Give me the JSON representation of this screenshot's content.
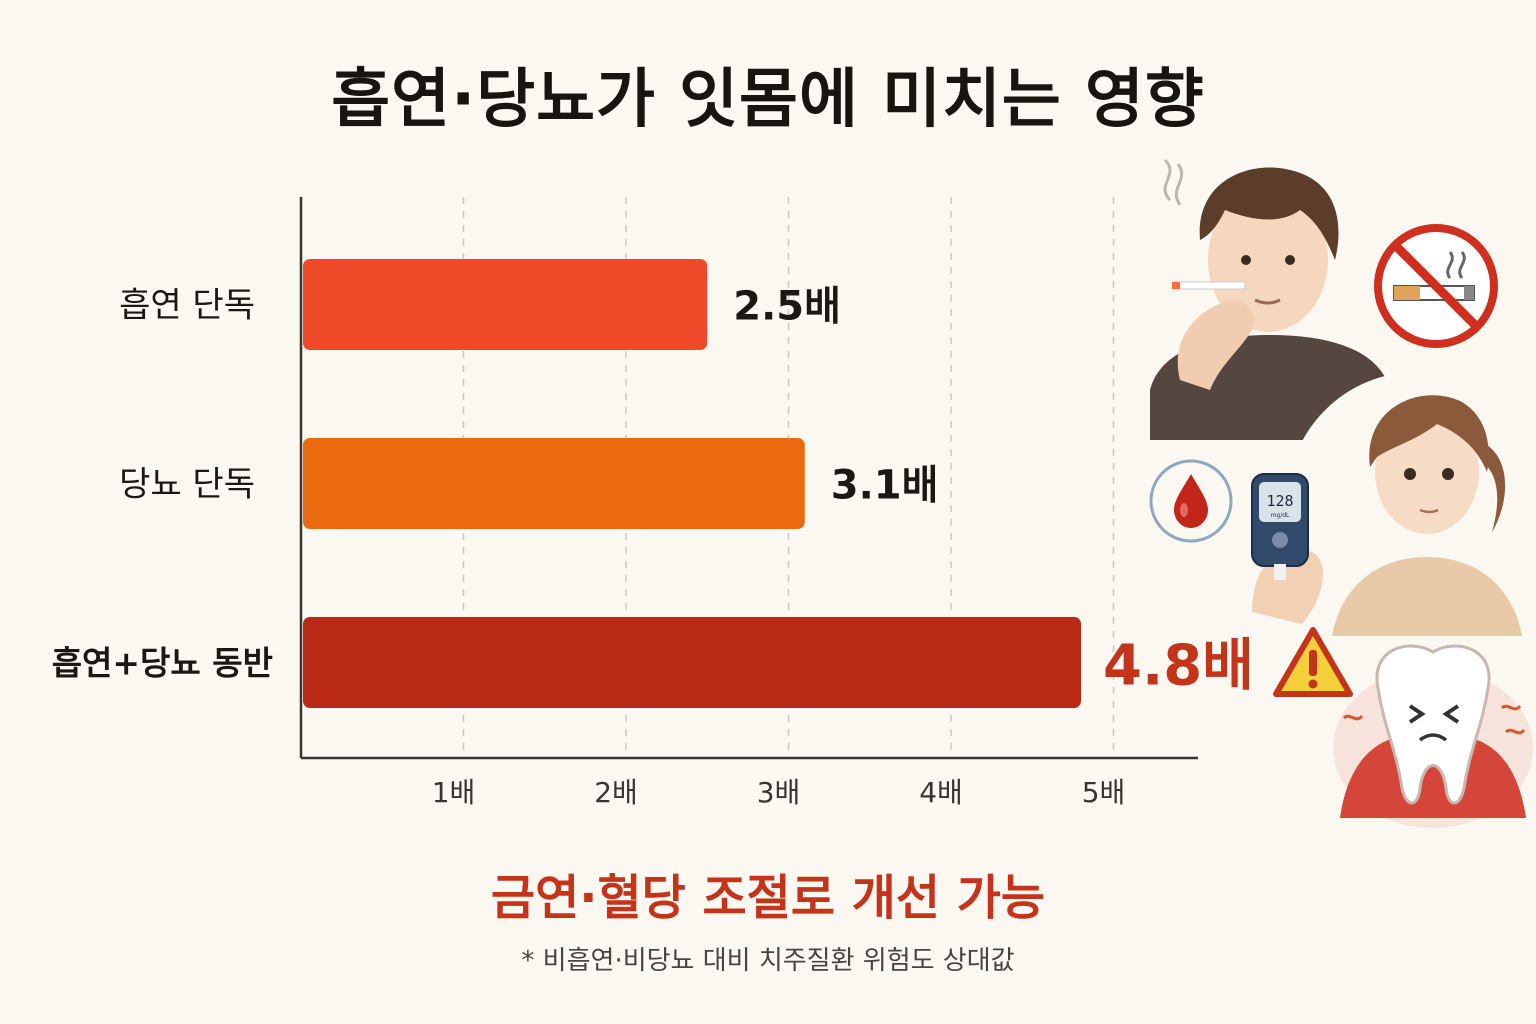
{
  "header": {
    "title": "흡연·당뇨가 잇몸에 미치는 영향"
  },
  "chart_data": {
    "type": "bar",
    "orientation": "horizontal",
    "categories": [
      "흡연 단독",
      "당뇨 단독",
      "흡연+당뇨 동반"
    ],
    "values": [
      2.5,
      3.1,
      4.8
    ],
    "value_labels": [
      "2.5배",
      "3.1배",
      "4.8배"
    ],
    "bar_colors": [
      "#ee4a2a",
      "#ec6a0f",
      "#b82a15"
    ],
    "label_colors": [
      "#1d1714",
      "#1d1714",
      "#c4341b"
    ],
    "highlight_index": 2,
    "xticks": [
      1,
      2,
      3,
      4,
      5
    ],
    "xtick_labels": [
      "1배",
      "2배",
      "3배",
      "4배",
      "5배"
    ],
    "xlim": [
      0,
      5.2
    ],
    "grid": "vertical-dashed",
    "title": "",
    "xlabel": "",
    "ylabel": ""
  },
  "footer": {
    "headline": "금연·혈당 조절로 개선 가능",
    "note": "* 비흡연·비당뇨 대비 치주질환 위험도 상대값"
  },
  "illustrations": {
    "smoker": "man-smoking-icon",
    "no_smoking": "no-smoking-icon",
    "blood_drop": "blood-drop-icon",
    "glucose_meter": "glucose-meter-icon",
    "meter_reading": "128",
    "meter_unit": "mg/dL",
    "woman": "woman-checking-glucose-icon",
    "warning": "warning-icon",
    "tooth": "painful-tooth-icon"
  }
}
